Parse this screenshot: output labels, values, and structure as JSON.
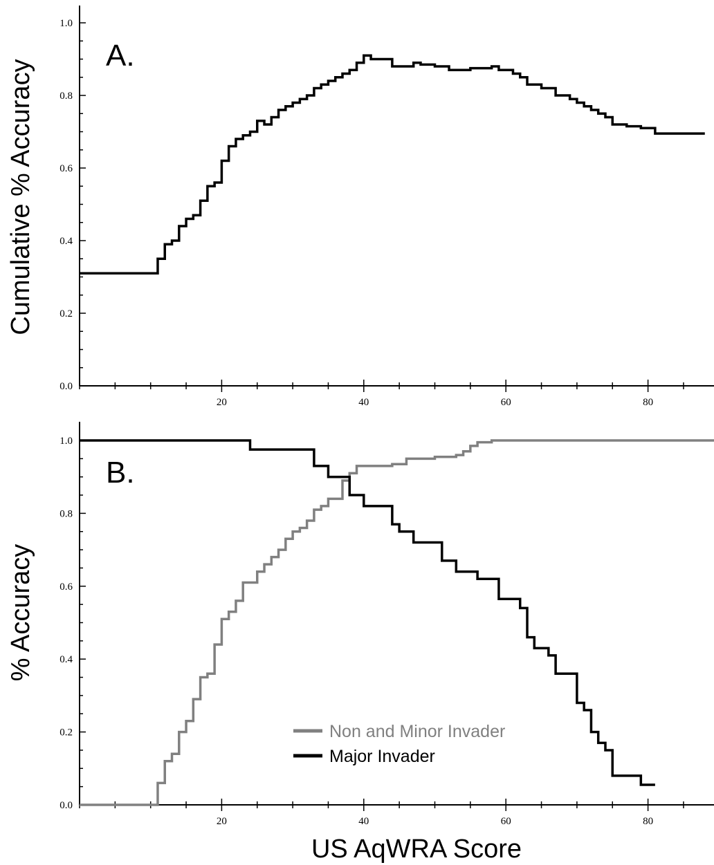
{
  "chart_data": [
    {
      "type": "line",
      "step": true,
      "panel_label": "A.",
      "ylabel": "Cumulative % Accuracy",
      "xlabel": "",
      "xlim": [
        0,
        90
      ],
      "ylim": [
        0,
        1.0
      ],
      "x_ticks": [
        20,
        40,
        60,
        80
      ],
      "y_ticks": [
        "0.0",
        "0.2",
        "0.4",
        "0.6",
        "0.8",
        "1.0"
      ],
      "series": [
        {
          "color": "#000000",
          "points": [
            [
              0,
              0.31
            ],
            [
              11,
              0.35
            ],
            [
              12,
              0.39
            ],
            [
              13,
              0.4
            ],
            [
              14,
              0.44
            ],
            [
              15,
              0.46
            ],
            [
              16,
              0.47
            ],
            [
              17,
              0.51
            ],
            [
              18,
              0.55
            ],
            [
              19,
              0.56
            ],
            [
              20,
              0.62
            ],
            [
              21,
              0.66
            ],
            [
              22,
              0.68
            ],
            [
              23,
              0.69
            ],
            [
              24,
              0.7
            ],
            [
              25,
              0.73
            ],
            [
              26,
              0.72
            ],
            [
              27,
              0.74
            ],
            [
              28,
              0.76
            ],
            [
              29,
              0.77
            ],
            [
              30,
              0.78
            ],
            [
              31,
              0.79
            ],
            [
              32,
              0.8
            ],
            [
              33,
              0.82
            ],
            [
              34,
              0.83
            ],
            [
              35,
              0.84
            ],
            [
              36,
              0.85
            ],
            [
              37,
              0.86
            ],
            [
              38,
              0.87
            ],
            [
              39,
              0.89
            ],
            [
              40,
              0.91
            ],
            [
              41,
              0.9
            ],
            [
              44,
              0.88
            ],
            [
              47,
              0.89
            ],
            [
              48,
              0.885
            ],
            [
              50,
              0.88
            ],
            [
              52,
              0.87
            ],
            [
              55,
              0.875
            ],
            [
              58,
              0.88
            ],
            [
              59,
              0.87
            ],
            [
              61,
              0.86
            ],
            [
              62,
              0.85
            ],
            [
              63,
              0.83
            ],
            [
              65,
              0.82
            ],
            [
              67,
              0.8
            ],
            [
              69,
              0.79
            ],
            [
              70,
              0.78
            ],
            [
              71,
              0.77
            ],
            [
              72,
              0.76
            ],
            [
              73,
              0.75
            ],
            [
              74,
              0.74
            ],
            [
              75,
              0.72
            ],
            [
              77,
              0.715
            ],
            [
              79,
              0.71
            ],
            [
              81,
              0.695
            ],
            [
              88,
              0.695
            ]
          ]
        }
      ]
    },
    {
      "type": "line",
      "step": true,
      "panel_label": "B.",
      "ylabel": "% Accuracy",
      "xlabel": "US AqWRA Score",
      "xlim": [
        0,
        90
      ],
      "ylim": [
        0,
        1.0
      ],
      "x_ticks": [
        20,
        40,
        60,
        80
      ],
      "y_ticks": [
        "0.0",
        "0.2",
        "0.4",
        "0.6",
        "0.8",
        "1.0"
      ],
      "legend": "bottom-center",
      "series": [
        {
          "name": "Non and Minor Invader",
          "color": "#808080",
          "points": [
            [
              0,
              0.0
            ],
            [
              11,
              0.06
            ],
            [
              12,
              0.12
            ],
            [
              13,
              0.14
            ],
            [
              14,
              0.2
            ],
            [
              15,
              0.23
            ],
            [
              16,
              0.29
            ],
            [
              17,
              0.35
            ],
            [
              18,
              0.36
            ],
            [
              19,
              0.44
            ],
            [
              20,
              0.51
            ],
            [
              21,
              0.53
            ],
            [
              22,
              0.56
            ],
            [
              23,
              0.61
            ],
            [
              25,
              0.64
            ],
            [
              26,
              0.66
            ],
            [
              27,
              0.68
            ],
            [
              28,
              0.7
            ],
            [
              29,
              0.73
            ],
            [
              30,
              0.75
            ],
            [
              31,
              0.76
            ],
            [
              32,
              0.78
            ],
            [
              33,
              0.81
            ],
            [
              34,
              0.82
            ],
            [
              35,
              0.84
            ],
            [
              37,
              0.89
            ],
            [
              38,
              0.91
            ],
            [
              39,
              0.93
            ],
            [
              44,
              0.935
            ],
            [
              46,
              0.95
            ],
            [
              50,
              0.955
            ],
            [
              53,
              0.96
            ],
            [
              54,
              0.97
            ],
            [
              55,
              0.985
            ],
            [
              56,
              0.995
            ],
            [
              58,
              1.0
            ],
            [
              90,
              1.0
            ]
          ]
        },
        {
          "name": "Major Invader",
          "color": "#000000",
          "points": [
            [
              0,
              1.0
            ],
            [
              24,
              0.975
            ],
            [
              33,
              0.93
            ],
            [
              35,
              0.9
            ],
            [
              38,
              0.85
            ],
            [
              40,
              0.82
            ],
            [
              44,
              0.77
            ],
            [
              45,
              0.75
            ],
            [
              47,
              0.72
            ],
            [
              51,
              0.67
            ],
            [
              53,
              0.64
            ],
            [
              56,
              0.62
            ],
            [
              59,
              0.565
            ],
            [
              62,
              0.54
            ],
            [
              63,
              0.46
            ],
            [
              64,
              0.43
            ],
            [
              66,
              0.41
            ],
            [
              67,
              0.36
            ],
            [
              70,
              0.28
            ],
            [
              71,
              0.26
            ],
            [
              72,
              0.2
            ],
            [
              73,
              0.17
            ],
            [
              74,
              0.15
            ],
            [
              75,
              0.08
            ],
            [
              79,
              0.055
            ],
            [
              81,
              0.055
            ]
          ]
        }
      ]
    }
  ]
}
